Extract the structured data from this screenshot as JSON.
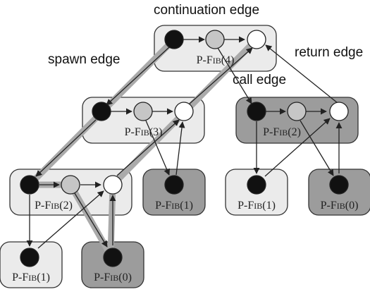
{
  "labels": {
    "continuation_edge": "continuation edge",
    "spawn_edge": "spawn edge",
    "call_edge": "call edge",
    "return_edge": "return edge"
  },
  "nodes": [
    {
      "id": "fib4",
      "prefix": "P-F",
      "sc": "IB",
      "arg": "(4)",
      "shade": "light"
    },
    {
      "id": "fib3",
      "prefix": "P-F",
      "sc": "IB",
      "arg": "(3)",
      "shade": "light"
    },
    {
      "id": "fib2a",
      "prefix": "P-F",
      "sc": "IB",
      "arg": "(2)",
      "shade": "dark"
    },
    {
      "id": "fib2b",
      "prefix": "P-F",
      "sc": "IB",
      "arg": "(2)",
      "shade": "light"
    },
    {
      "id": "fib1a",
      "prefix": "P-F",
      "sc": "IB",
      "arg": "(1)",
      "shade": "dark"
    },
    {
      "id": "fib1b",
      "prefix": "P-F",
      "sc": "IB",
      "arg": "(1)",
      "shade": "light"
    },
    {
      "id": "fib0a",
      "prefix": "P-F",
      "sc": "IB",
      "arg": "(0)",
      "shade": "dark"
    },
    {
      "id": "fib1c",
      "prefix": "P-F",
      "sc": "IB",
      "arg": "(1)",
      "shade": "light"
    },
    {
      "id": "fib0b",
      "prefix": "P-F",
      "sc": "IB",
      "arg": "(0)",
      "shade": "dark"
    }
  ],
  "colors": {
    "light_box": "#ebebeb",
    "dark_box": "#9c9c9c",
    "box_stroke": "#333333",
    "black_strand": "#111111",
    "grey_strand": "#c6c6c6",
    "white_strand": "#ffffff",
    "critical_path": "#aaaaaa",
    "arrow": "#222222"
  }
}
